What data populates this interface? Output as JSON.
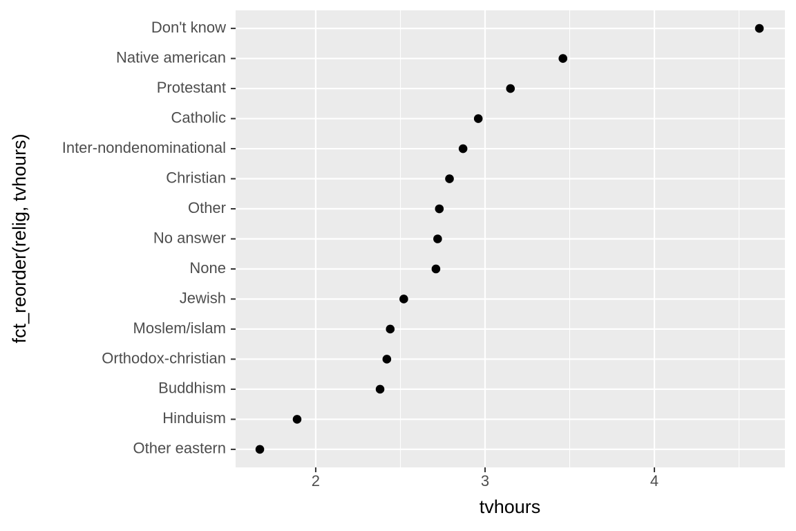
{
  "chart_data": {
    "type": "scatter",
    "x_label": "tvhours",
    "y_label": "fct_reorder(relig, tvhours)",
    "categories": [
      "Don't know",
      "Native american",
      "Protestant",
      "Catholic",
      "Inter-nondenominational",
      "Christian",
      "Other",
      "No answer",
      "None",
      "Jewish",
      "Moslem/islam",
      "Orthodox-christian",
      "Buddhism",
      "Hinduism",
      "Other eastern"
    ],
    "series": [
      {
        "color": "#000000",
        "values": [
          4.62,
          3.46,
          3.15,
          2.96,
          2.87,
          2.79,
          2.73,
          2.72,
          2.71,
          2.52,
          2.44,
          2.42,
          2.38,
          1.89,
          1.67
        ]
      }
    ],
    "xlim": [
      1.527,
      4.771
    ],
    "xticks": [
      2,
      3,
      4
    ],
    "x_minor_grid": [
      2.5,
      3.5,
      4.5
    ],
    "grid": true
  }
}
